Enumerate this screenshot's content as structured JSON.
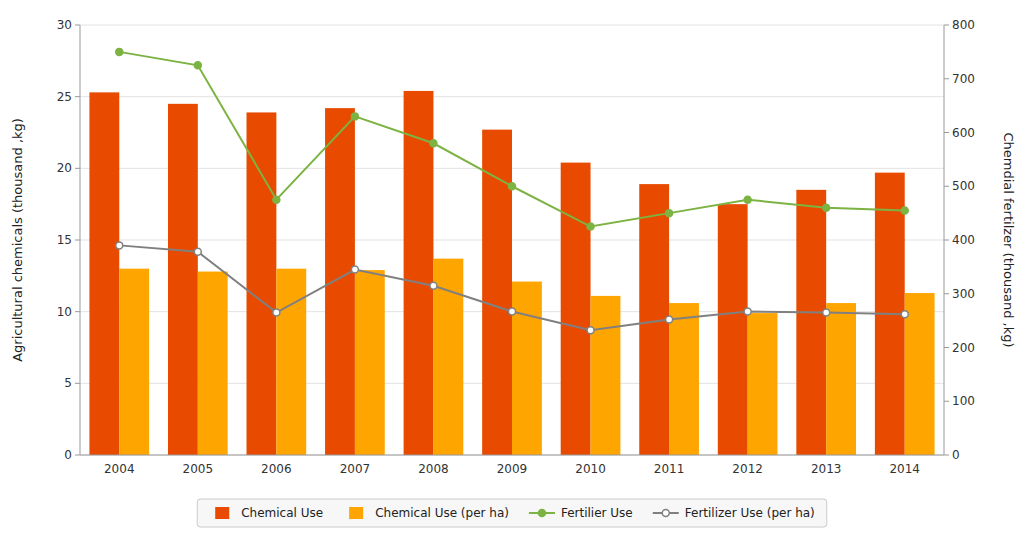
{
  "chart_data": {
    "type": "bar",
    "ylabel": "Agricultural chemicals (thousand ,kg)",
    "y2label": "Chemdial fertilzer (thousand ,kg)",
    "categories": [
      "2004",
      "2005",
      "2006",
      "2007",
      "2008",
      "2009",
      "2010",
      "2011",
      "2012",
      "2013",
      "2014"
    ],
    "series": [
      {
        "name": "Chemical Use",
        "color": "#E84B00",
        "values": [
          25.3,
          24.5,
          23.9,
          24.2,
          25.4,
          22.7,
          20.4,
          18.9,
          17.5,
          18.5,
          19.7
        ]
      },
      {
        "name": "Chemical Use (per ha)",
        "color": "#FFA500",
        "values": [
          13.0,
          12.8,
          13.0,
          12.9,
          13.7,
          12.1,
          11.1,
          10.6,
          9.9,
          10.6,
          11.3
        ]
      },
      {
        "name": "Fertilier Use",
        "type": "line",
        "axis": "y2",
        "color": "#7CB342",
        "marker": "circle",
        "line_style": "solid",
        "values": [
          750,
          725,
          475,
          630,
          580,
          500,
          425,
          450,
          475,
          460,
          455
        ]
      },
      {
        "name": "Fertilizer Use (per ha)",
        "type": "line",
        "axis": "y2",
        "color": "#808080",
        "marker": "open-circle",
        "line_style": "solid",
        "values": [
          390,
          378,
          265,
          345,
          315,
          267,
          232,
          252,
          267,
          265,
          262
        ]
      }
    ],
    "ylim": [
      0,
      30
    ],
    "yticks": [
      0,
      5,
      10,
      15,
      20,
      25,
      30
    ],
    "y2lim": [
      0,
      800
    ],
    "y2ticks": [
      0,
      100,
      200,
      300,
      400,
      500,
      600,
      700,
      800
    ],
    "grid": true,
    "legend": "bottom"
  }
}
